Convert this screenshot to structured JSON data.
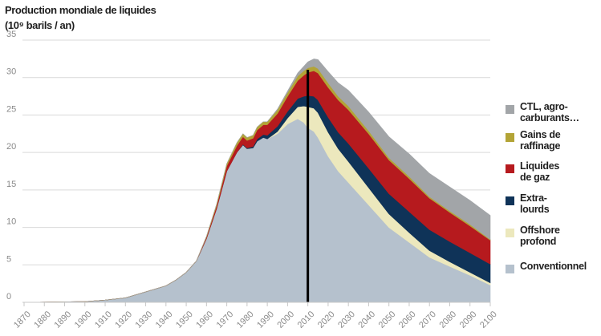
{
  "chart_data": {
    "type": "area",
    "title_line1": "Production mondiale de liquides",
    "title_line2": "(10⁹ barils / an)",
    "ylim": [
      0,
      35
    ],
    "xlim": [
      1870,
      2100
    ],
    "yticks": [
      0,
      5,
      10,
      15,
      20,
      25,
      30,
      35
    ],
    "xticks": [
      1870,
      1880,
      1890,
      1900,
      1910,
      1920,
      1930,
      1940,
      1950,
      1960,
      1970,
      1980,
      1990,
      2000,
      2010,
      2020,
      2030,
      2040,
      2050,
      2060,
      2070,
      2080,
      2090,
      2100
    ],
    "x": [
      1870,
      1900,
      1910,
      1920,
      1930,
      1935,
      1940,
      1945,
      1950,
      1955,
      1960,
      1965,
      1970,
      1975,
      1978,
      1980,
      1983,
      1985,
      1988,
      1990,
      1995,
      2000,
      2005,
      2008,
      2010,
      2013,
      2015,
      2020,
      2025,
      2030,
      2040,
      2050,
      2060,
      2070,
      2080,
      2090,
      2100
    ],
    "series": [
      {
        "name": "Conventionnel",
        "color": "#b5c1cd",
        "values": [
          0,
          0.1,
          0.3,
          0.6,
          1.4,
          1.8,
          2.2,
          3.0,
          4.0,
          5.5,
          8.5,
          12.5,
          17.5,
          20.0,
          21.0,
          20.5,
          20.6,
          21.5,
          22.0,
          21.8,
          22.5,
          23.8,
          24.5,
          24.0,
          23.3,
          22.8,
          22.0,
          19.5,
          17.5,
          16.0,
          13.0,
          10.0,
          8.0,
          6.0,
          4.8,
          3.6,
          2.3
        ]
      },
      {
        "name": "Offshore profond",
        "color": "#ece8bd",
        "values": [
          0,
          0,
          0,
          0,
          0,
          0,
          0,
          0,
          0,
          0,
          0,
          0,
          0,
          0,
          0,
          0,
          0,
          0,
          0,
          0,
          0.3,
          0.8,
          1.6,
          2.2,
          2.8,
          3.1,
          3.3,
          3.2,
          3.0,
          2.8,
          2.3,
          1.8,
          1.3,
          0.9,
          0.6,
          0.4,
          0.3
        ]
      },
      {
        "name": "Extra-lourds",
        "color": "#0f3358",
        "values": [
          0,
          0,
          0,
          0,
          0,
          0,
          0,
          0,
          0,
          0,
          0,
          0,
          0,
          0,
          0.1,
          0.1,
          0.2,
          0.3,
          0.4,
          0.5,
          0.7,
          0.9,
          1.1,
          1.3,
          1.5,
          1.6,
          1.7,
          2.0,
          2.2,
          2.4,
          2.6,
          2.7,
          2.8,
          2.8,
          2.7,
          2.6,
          2.5
        ]
      },
      {
        "name": "Liquides de gaz",
        "color": "#b61a1e",
        "values": [
          0,
          0,
          0,
          0,
          0,
          0,
          0,
          0,
          0,
          0,
          0.2,
          0.4,
          0.7,
          0.9,
          1.0,
          1.0,
          1.1,
          1.2,
          1.3,
          1.4,
          1.7,
          2.0,
          2.4,
          2.8,
          3.1,
          3.4,
          3.6,
          4.0,
          4.3,
          4.5,
          4.6,
          4.5,
          4.4,
          4.2,
          3.9,
          3.6,
          3.2
        ]
      },
      {
        "name": "Gains de raffinage",
        "color": "#b3a436",
        "values": [
          0,
          0,
          0,
          0,
          0,
          0,
          0,
          0,
          0,
          0,
          0.1,
          0.2,
          0.3,
          0.4,
          0.4,
          0.4,
          0.4,
          0.4,
          0.4,
          0.4,
          0.5,
          0.5,
          0.6,
          0.6,
          0.6,
          0.6,
          0.6,
          0.6,
          0.5,
          0.5,
          0.4,
          0.3,
          0.3,
          0.2,
          0.2,
          0.2,
          0.1
        ]
      },
      {
        "name": "CTL, agro-carburants…",
        "color": "#a2a5a8",
        "values": [
          0,
          0,
          0,
          0,
          0,
          0,
          0,
          0,
          0,
          0,
          0,
          0,
          0,
          0,
          0,
          0,
          0,
          0,
          0,
          0,
          0.1,
          0.2,
          0.4,
          0.6,
          0.8,
          1.0,
          1.2,
          1.5,
          1.8,
          2.1,
          2.5,
          2.8,
          3.0,
          3.1,
          3.2,
          3.2,
          3.2
        ]
      }
    ],
    "legend": [
      {
        "label": "CTL, agro-\ncarburants…",
        "color": "#a2a5a8"
      },
      {
        "label": "Gains de\nraffinage",
        "color": "#b3a436"
      },
      {
        "label": "Liquides\nde gaz",
        "color": "#b61a1e"
      },
      {
        "label": "Extra-\nlourds",
        "color": "#0f3358"
      },
      {
        "label": "Offshore\nprofond",
        "color": "#ece8bd"
      },
      {
        "label": "Conventionnel",
        "color": "#b5c1cd"
      }
    ],
    "marker_year": 2010,
    "legend_position": "right",
    "grid": true
  }
}
